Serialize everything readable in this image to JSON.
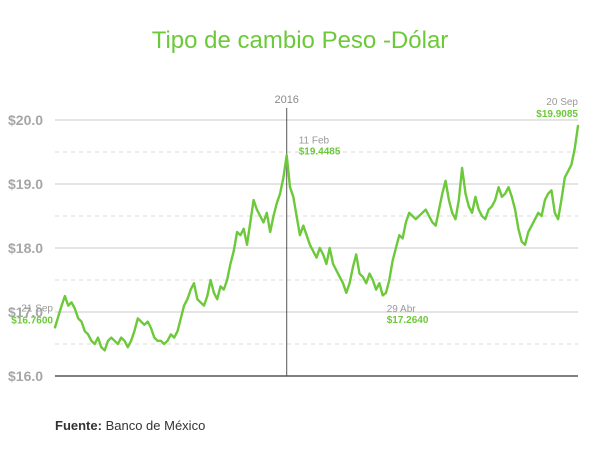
{
  "colors": {
    "accent": "#6cc93a",
    "grid_major": "#c8c8c8",
    "grid_minor": "#d8d8d8",
    "axis": "#555555",
    "tick_text": "#a6a6a6",
    "annotation_text": "#999999"
  },
  "source": {
    "label": "Fuente:",
    "value": "Banco de México"
  },
  "chart_data": {
    "type": "line",
    "title": "Tipo de cambio Peso -Dólar",
    "xlabel": "",
    "ylabel": "",
    "ylim": [
      16.0,
      20.0
    ],
    "yticks": [
      {
        "value": 16.0,
        "label": "$16.0"
      },
      {
        "value": 17.0,
        "label": "$17.0"
      },
      {
        "value": 18.0,
        "label": "$18.0"
      },
      {
        "value": 19.0,
        "label": "$19.0"
      },
      {
        "value": 20.0,
        "label": "$20.0"
      }
    ],
    "minor_gridlines": [
      16.5,
      17.5,
      18.5,
      19.5
    ],
    "grid": true,
    "x_markers": [
      {
        "label": "2016",
        "x": 70
      }
    ],
    "series": [
      {
        "points": [
          [
            0,
            16.76
          ],
          [
            2,
            17.1
          ],
          [
            3,
            17.25
          ],
          [
            4,
            17.1
          ],
          [
            5,
            17.15
          ],
          [
            6,
            17.05
          ],
          [
            7,
            16.9
          ],
          [
            8,
            16.85
          ],
          [
            9,
            16.7
          ],
          [
            10,
            16.65
          ],
          [
            11,
            16.55
          ],
          [
            12,
            16.5
          ],
          [
            13,
            16.6
          ],
          [
            14,
            16.45
          ],
          [
            15,
            16.4
          ],
          [
            16,
            16.55
          ],
          [
            17,
            16.6
          ],
          [
            18,
            16.55
          ],
          [
            19,
            16.5
          ],
          [
            20,
            16.6
          ],
          [
            21,
            16.55
          ],
          [
            22,
            16.45
          ],
          [
            23,
            16.55
          ],
          [
            24,
            16.7
          ],
          [
            25,
            16.9
          ],
          [
            26,
            16.85
          ],
          [
            27,
            16.8
          ],
          [
            28,
            16.85
          ],
          [
            29,
            16.75
          ],
          [
            30,
            16.6
          ],
          [
            31,
            16.55
          ],
          [
            32,
            16.55
          ],
          [
            33,
            16.5
          ],
          [
            34,
            16.55
          ],
          [
            35,
            16.65
          ],
          [
            36,
            16.6
          ],
          [
            37,
            16.7
          ],
          [
            38,
            16.9
          ],
          [
            39,
            17.1
          ],
          [
            40,
            17.2
          ],
          [
            41,
            17.35
          ],
          [
            42,
            17.45
          ],
          [
            43,
            17.2
          ],
          [
            44,
            17.15
          ],
          [
            45,
            17.1
          ],
          [
            46,
            17.25
          ],
          [
            47,
            17.5
          ],
          [
            48,
            17.3
          ],
          [
            49,
            17.2
          ],
          [
            50,
            17.4
          ],
          [
            51,
            17.35
          ],
          [
            52,
            17.5
          ],
          [
            53,
            17.75
          ],
          [
            54,
            17.95
          ],
          [
            55,
            18.25
          ],
          [
            56,
            18.2
          ],
          [
            57,
            18.3
          ],
          [
            58,
            18.05
          ],
          [
            59,
            18.4
          ],
          [
            60,
            18.75
          ],
          [
            61,
            18.6
          ],
          [
            62,
            18.5
          ],
          [
            63,
            18.4
          ],
          [
            64,
            18.55
          ],
          [
            65,
            18.25
          ],
          [
            66,
            18.5
          ],
          [
            67,
            18.7
          ],
          [
            68,
            18.85
          ],
          [
            69,
            19.1
          ],
          [
            70,
            19.4485
          ],
          [
            71,
            18.95
          ],
          [
            72,
            18.8
          ],
          [
            73,
            18.5
          ],
          [
            74,
            18.2
          ],
          [
            75,
            18.35
          ],
          [
            76,
            18.2
          ],
          [
            77,
            18.05
          ],
          [
            78,
            17.95
          ],
          [
            79,
            17.85
          ],
          [
            80,
            18.0
          ],
          [
            81,
            17.9
          ],
          [
            82,
            17.75
          ],
          [
            83,
            18.0
          ],
          [
            84,
            17.75
          ],
          [
            85,
            17.65
          ],
          [
            86,
            17.55
          ],
          [
            87,
            17.45
          ],
          [
            88,
            17.3
          ],
          [
            89,
            17.45
          ],
          [
            90,
            17.7
          ],
          [
            91,
            17.9
          ],
          [
            92,
            17.6
          ],
          [
            93,
            17.55
          ],
          [
            94,
            17.45
          ],
          [
            95,
            17.6
          ],
          [
            96,
            17.5
          ],
          [
            97,
            17.35
          ],
          [
            98,
            17.45
          ],
          [
            99,
            17.26
          ],
          [
            100,
            17.3
          ],
          [
            101,
            17.5
          ],
          [
            102,
            17.8
          ],
          [
            103,
            18.0
          ],
          [
            104,
            18.2
          ],
          [
            105,
            18.15
          ],
          [
            106,
            18.4
          ],
          [
            107,
            18.55
          ],
          [
            108,
            18.5
          ],
          [
            109,
            18.45
          ],
          [
            110,
            18.5
          ],
          [
            111,
            18.55
          ],
          [
            112,
            18.6
          ],
          [
            113,
            18.5
          ],
          [
            114,
            18.4
          ],
          [
            115,
            18.35
          ],
          [
            116,
            18.6
          ],
          [
            117,
            18.85
          ],
          [
            118,
            19.05
          ],
          [
            119,
            18.75
          ],
          [
            120,
            18.55
          ],
          [
            121,
            18.45
          ],
          [
            122,
            18.75
          ],
          [
            123,
            19.25
          ],
          [
            124,
            18.85
          ],
          [
            125,
            18.65
          ],
          [
            126,
            18.55
          ],
          [
            127,
            18.8
          ],
          [
            128,
            18.6
          ],
          [
            129,
            18.5
          ],
          [
            130,
            18.45
          ],
          [
            131,
            18.6
          ],
          [
            132,
            18.65
          ],
          [
            133,
            18.75
          ],
          [
            134,
            18.95
          ],
          [
            135,
            18.8
          ],
          [
            136,
            18.85
          ],
          [
            137,
            18.95
          ],
          [
            138,
            18.8
          ],
          [
            139,
            18.6
          ],
          [
            140,
            18.3
          ],
          [
            141,
            18.1
          ],
          [
            142,
            18.05
          ],
          [
            143,
            18.25
          ],
          [
            144,
            18.35
          ],
          [
            145,
            18.45
          ],
          [
            146,
            18.55
          ],
          [
            147,
            18.5
          ],
          [
            148,
            18.75
          ],
          [
            149,
            18.85
          ],
          [
            150,
            18.9
          ],
          [
            151,
            18.55
          ],
          [
            152,
            18.45
          ],
          [
            153,
            18.75
          ],
          [
            154,
            19.1
          ],
          [
            155,
            19.2
          ],
          [
            156,
            19.3
          ],
          [
            157,
            19.55
          ],
          [
            158,
            19.9085
          ]
        ]
      }
    ],
    "annotations": [
      {
        "date": "21 Sep",
        "value": "$16.7600",
        "x": 0,
        "y": 16.76
      },
      {
        "date": "11 Feb",
        "value": "$19.4485",
        "x": 70,
        "y": 19.4485
      },
      {
        "date": "29 Abr",
        "value": "$17.2640",
        "x": 99,
        "y": 17.264
      },
      {
        "date": "20 Sep",
        "value": "$19.9085",
        "x": 158,
        "y": 19.9085
      }
    ]
  }
}
